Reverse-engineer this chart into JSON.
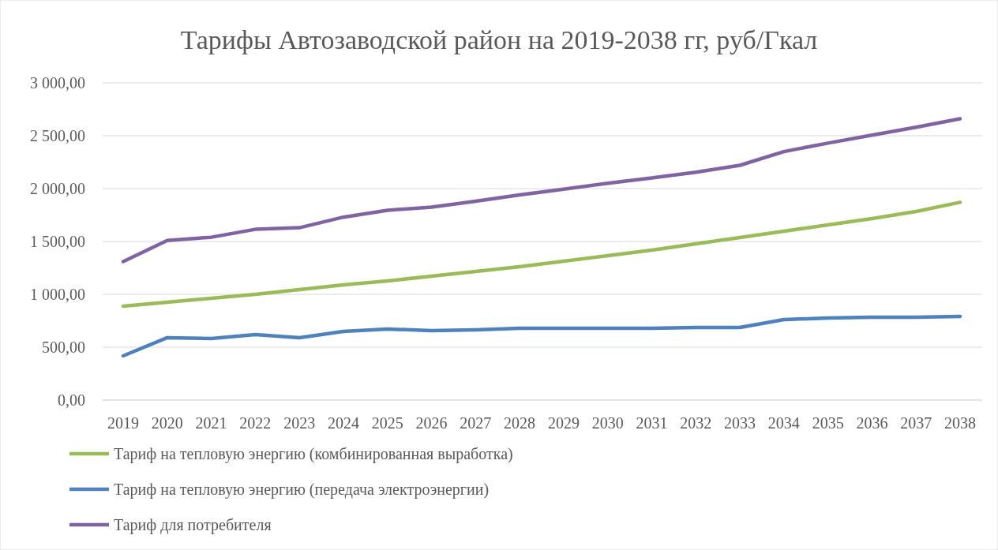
{
  "chart_data": {
    "type": "line",
    "title": "Тарифы Автозаводской район на 2019-2038 гг, руб/Гкал",
    "categories": [
      "2019",
      "2020",
      "2021",
      "2022",
      "2023",
      "2024",
      "2025",
      "2026",
      "2027",
      "2028",
      "2029",
      "2030",
      "2031",
      "2032",
      "2033",
      "2034",
      "2035",
      "2036",
      "2037",
      "2038"
    ],
    "series": [
      {
        "name": "Тариф на тепловую энергию (комбинированная выработка)",
        "color": "#9bbb59",
        "values": [
          888,
          925,
          963,
          1000,
          1045,
          1090,
          1127,
          1172,
          1216,
          1261,
          1313,
          1366,
          1418,
          1478,
          1537,
          1597,
          1657,
          1716,
          1784,
          1870
        ]
      },
      {
        "name": "Тариф на тепловую энергию (передача электроэнергии)",
        "color": "#4f81bd",
        "values": [
          418,
          590,
          582,
          619,
          590,
          649,
          672,
          657,
          664,
          679,
          679,
          679,
          679,
          686,
          686,
          761,
          776,
          784,
          784,
          791
        ]
      },
      {
        "name": "Тариф для потребителя",
        "color": "#8064a2",
        "values": [
          1310,
          1510,
          1540,
          1615,
          1630,
          1730,
          1795,
          1825,
          1880,
          1940,
          1995,
          2050,
          2100,
          2155,
          2220,
          2350,
          2430,
          2505,
          2580,
          2660
        ]
      }
    ],
    "ylim": [
      0,
      3000
    ],
    "yticks": [
      {
        "value": 0,
        "label": "0,00"
      },
      {
        "value": 500,
        "label": "500,00"
      },
      {
        "value": 1000,
        "label": "1 000,00"
      },
      {
        "value": 1500,
        "label": "1 500,00"
      },
      {
        "value": 2000,
        "label": "2 000,00"
      },
      {
        "value": 2500,
        "label": "2 500,00"
      },
      {
        "value": 3000,
        "label": "3 000,00"
      }
    ],
    "grid": "y",
    "legend": "bottom",
    "marker": "none",
    "line_style": "solid"
  }
}
